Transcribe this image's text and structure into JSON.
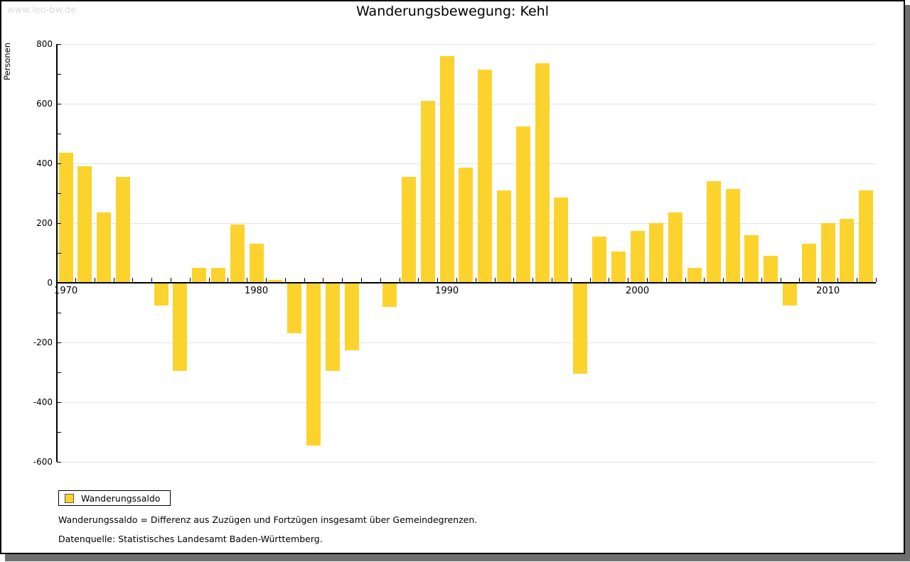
{
  "watermark": "www.leo-bw.de",
  "header": {
    "title": "Wanderungsbewegung: Kehl"
  },
  "legend": {
    "label": "Wanderungssaldo"
  },
  "footnotes": {
    "definition": "Wanderungssaldo = Differenz aus Zuzügen und Fortzügen insgesamt über Gemeindegrenzen.",
    "source": "Datenquelle: Statistisches Landesamt Baden-Württemberg."
  },
  "colors": {
    "bar": "#FCD32D",
    "grid": "#e3e3e3",
    "axis": "#000000",
    "watermark_text": "#dcdcdc",
    "panel_shadow": "#6f6f6f"
  },
  "chart_data": {
    "type": "bar",
    "title": "Wanderungsbewegung: Kehl",
    "xlabel": "",
    "ylabel": "Personen",
    "series_name": "Wanderungssaldo",
    "categories": [
      1970,
      1971,
      1972,
      1973,
      1974,
      1975,
      1976,
      1977,
      1978,
      1979,
      1980,
      1981,
      1982,
      1983,
      1984,
      1985,
      1986,
      1987,
      1988,
      1989,
      1990,
      1991,
      1992,
      1993,
      1994,
      1995,
      1996,
      1997,
      1998,
      1999,
      2000,
      2001,
      2002,
      2003,
      2004,
      2005,
      2006,
      2007,
      2008,
      2009,
      2010,
      2011,
      2012
    ],
    "values": [
      435,
      390,
      235,
      355,
      0,
      -75,
      -295,
      50,
      50,
      195,
      130,
      10,
      -170,
      -545,
      -295,
      -225,
      0,
      -80,
      355,
      610,
      760,
      385,
      715,
      310,
      525,
      735,
      285,
      -305,
      155,
      105,
      175,
      200,
      235,
      50,
      340,
      315,
      160,
      90,
      -75,
      130,
      200,
      215,
      310
    ],
    "ylim": [
      -600,
      800
    ],
    "ytick_major_step": 200,
    "ytick_minor_step": 100,
    "ytick_labels": [
      800,
      600,
      400,
      200,
      0,
      -200,
      -400,
      -600
    ],
    "xtick_labels": [
      1970,
      1980,
      1990,
      2000,
      2010
    ],
    "grid": "horizontal-light",
    "legend_position": "bottom-left"
  }
}
